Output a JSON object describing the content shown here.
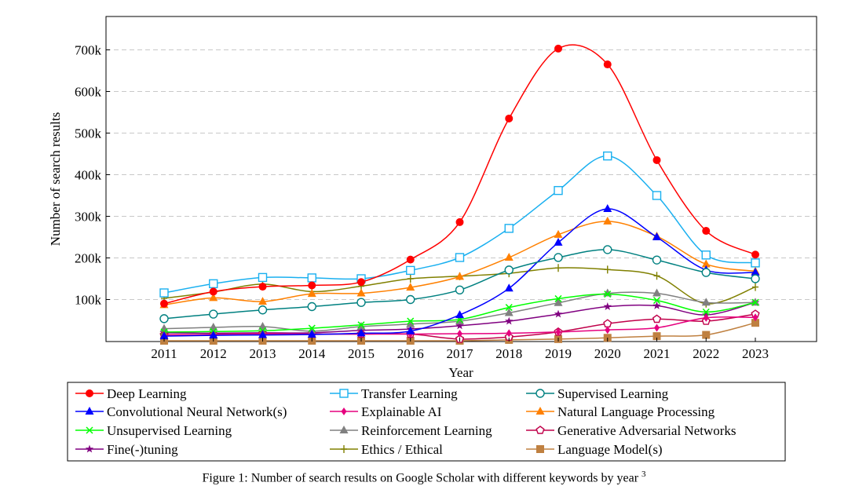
{
  "chart_data": {
    "type": "line",
    "xlabel": "Year",
    "ylabel": "Number of search results",
    "x": [
      2011,
      2012,
      2013,
      2014,
      2015,
      2016,
      2017,
      2018,
      2019,
      2020,
      2021,
      2022,
      2023
    ],
    "xlim": [
      2010,
      2024
    ],
    "ylim": [
      0,
      770000
    ],
    "yticks": [
      100000,
      200000,
      300000,
      400000,
      500000,
      600000,
      700000
    ],
    "ytick_labels": [
      "100k",
      "200k",
      "300k",
      "400k",
      "500k",
      "600k",
      "700k"
    ],
    "grid": "horizontal dashed",
    "smooth": true,
    "legend_placement": "bottom (below plot, 3 columns)",
    "series": [
      {
        "name": "Deep Learning",
        "color": "#ff0000",
        "marker": "filled-circle",
        "values": [
          90000,
          119000,
          131000,
          134000,
          142000,
          196000,
          286000,
          535000,
          703000,
          665000,
          435000,
          265000,
          208000
        ]
      },
      {
        "name": "Transfer Learning",
        "color": "#1ab0f0",
        "marker": "open-square",
        "values": [
          116000,
          138000,
          153000,
          152000,
          150000,
          170000,
          201000,
          271000,
          362000,
          445000,
          350000,
          207000,
          188000
        ]
      },
      {
        "name": "Supervised Learning",
        "color": "#008080",
        "marker": "open-circle",
        "values": [
          54000,
          65000,
          75000,
          83000,
          93000,
          100000,
          123000,
          171000,
          201000,
          220000,
          195000,
          165000,
          150000
        ]
      },
      {
        "name": "Convolutional Neural Network(s)",
        "color": "#0000ff",
        "marker": "filled-triangle",
        "values": [
          12000,
          14000,
          15000,
          16000,
          19000,
          24000,
          63000,
          127000,
          237000,
          318000,
          250000,
          171000,
          165000
        ]
      },
      {
        "name": "Explainable AI",
        "color": "#e6007e",
        "marker": "filled-diamond",
        "values": [
          15000,
          16000,
          18000,
          17000,
          17000,
          17000,
          18000,
          19000,
          22000,
          27000,
          32000,
          56000,
          57000
        ]
      },
      {
        "name": "Natural Language Processing",
        "color": "#ff8000",
        "marker": "filled-triangle",
        "values": [
          87000,
          104000,
          95000,
          114000,
          115000,
          129000,
          155000,
          201000,
          256000,
          288000,
          252000,
          185000,
          168000
        ]
      },
      {
        "name": "Unsupervised Learning",
        "color": "#00ff00",
        "marker": "cross",
        "values": [
          22000,
          23000,
          25000,
          31000,
          39000,
          48000,
          52000,
          81000,
          102000,
          113000,
          98000,
          70000,
          93000
        ]
      },
      {
        "name": "Reinforcement Learning",
        "color": "#808080",
        "marker": "filled-triangle",
        "values": [
          30000,
          33000,
          35000,
          24000,
          35000,
          41000,
          48000,
          68000,
          92000,
          115000,
          115000,
          93000,
          93000
        ]
      },
      {
        "name": "Generative Adversarial Networks",
        "color": "#c0004a",
        "marker": "open-pentagon",
        "values": [
          15000,
          16000,
          18000,
          17000,
          17000,
          17000,
          5000,
          10000,
          22000,
          42000,
          53000,
          48000,
          65000
        ]
      },
      {
        "name": "Fine(-)tuning",
        "color": "#800080",
        "marker": "star",
        "values": [
          20000,
          19000,
          20000,
          20000,
          26000,
          29000,
          37000,
          48000,
          65000,
          83000,
          85000,
          63000,
          93000
        ]
      },
      {
        "name": "Ethics / Ethical",
        "color": "#808000",
        "marker": "plus",
        "values": [
          103000,
          118000,
          137000,
          119000,
          132000,
          150000,
          156000,
          163000,
          176000,
          172000,
          157000,
          90000,
          130000
        ]
      },
      {
        "name": "Language Model(s)",
        "color": "#bf8040",
        "marker": "filled-square",
        "values": [
          1000,
          1000,
          1000,
          1000,
          1000,
          1000,
          1000,
          3000,
          5000,
          8000,
          12000,
          15000,
          44000
        ]
      }
    ]
  },
  "caption": {
    "text": "Figure 1: Number of search results on Google Scholar with different keywords by year",
    "footnote": "3"
  }
}
